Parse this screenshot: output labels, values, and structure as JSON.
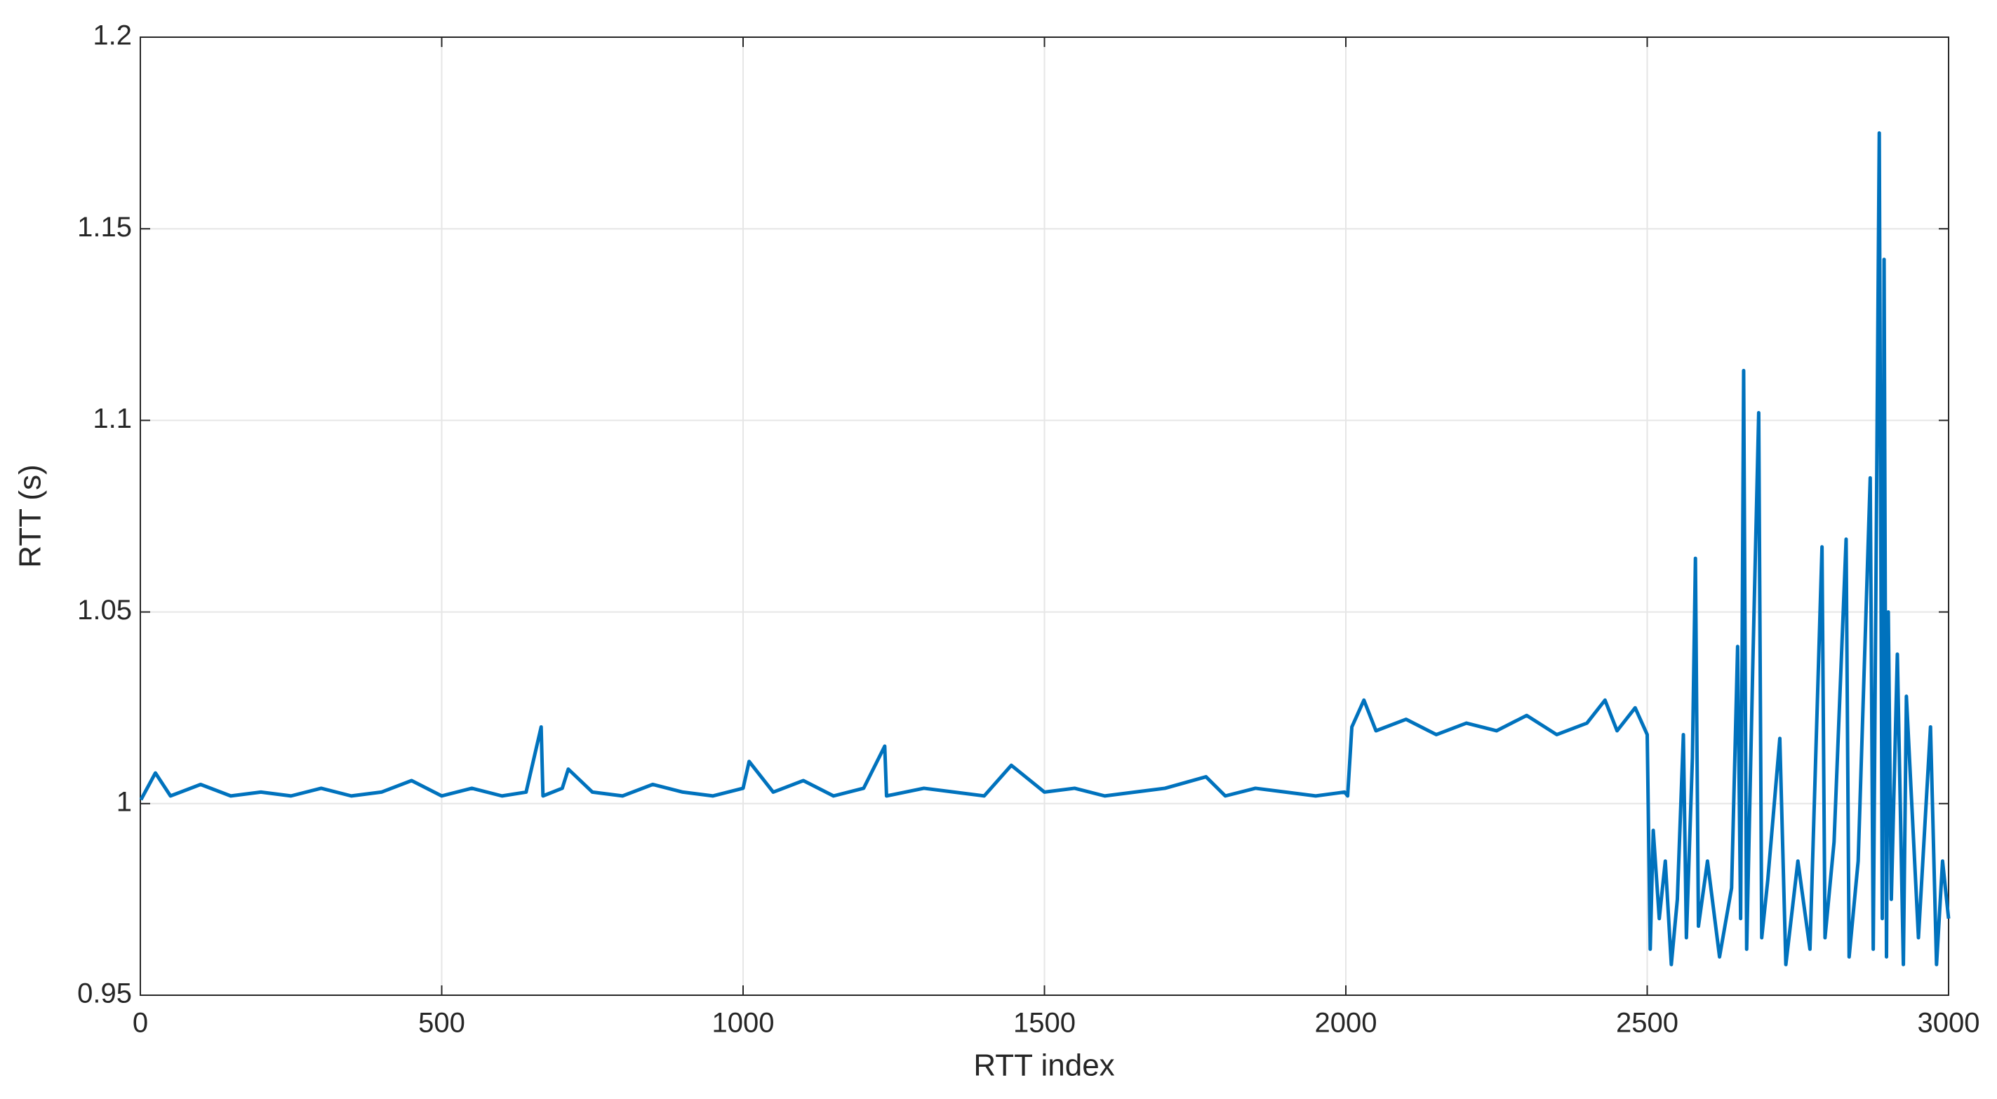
{
  "chart_data": {
    "type": "line",
    "xlabel": "RTT index",
    "ylabel": "RTT (s)",
    "x": [
      1,
      25,
      50,
      100,
      150,
      200,
      250,
      300,
      350,
      400,
      450,
      500,
      550,
      600,
      640,
      665,
      668,
      700,
      710,
      750,
      800,
      850,
      900,
      950,
      1000,
      1010,
      1050,
      1100,
      1150,
      1200,
      1235,
      1238,
      1300,
      1350,
      1400,
      1445,
      1500,
      1550,
      1600,
      1650,
      1700,
      1768,
      1800,
      1850,
      1900,
      1950,
      1998,
      2003,
      2010,
      2030,
      2050,
      2100,
      2150,
      2200,
      2250,
      2300,
      2350,
      2400,
      2430,
      2450,
      2480,
      2500,
      2505,
      2510,
      2520,
      2530,
      2540,
      2550,
      2560,
      2565,
      2575,
      2580,
      2585,
      2600,
      2620,
      2640,
      2650,
      2655,
      2660,
      2665,
      2675,
      2685,
      2690,
      2700,
      2720,
      2730,
      2750,
      2770,
      2790,
      2795,
      2810,
      2830,
      2835,
      2850,
      2870,
      2875,
      2885,
      2890,
      2893,
      2897,
      2900,
      2905,
      2915,
      2925,
      2930,
      2950,
      2970,
      2980,
      2990,
      3000
    ],
    "series": [
      {
        "name": "RTT",
        "color": "#0072bd",
        "values": [
          1.001,
          1.008,
          1.002,
          1.005,
          1.002,
          1.003,
          1.002,
          1.004,
          1.002,
          1.003,
          1.006,
          1.002,
          1.004,
          1.002,
          1.003,
          1.02,
          1.002,
          1.004,
          1.009,
          1.003,
          1.002,
          1.005,
          1.003,
          1.002,
          1.004,
          1.011,
          1.003,
          1.006,
          1.002,
          1.004,
          1.015,
          1.002,
          1.004,
          1.003,
          1.002,
          1.01,
          1.003,
          1.004,
          1.002,
          1.003,
          1.004,
          1.007,
          1.002,
          1.004,
          1.003,
          1.002,
          1.003,
          1.002,
          1.02,
          1.027,
          1.019,
          1.022,
          1.018,
          1.021,
          1.019,
          1.023,
          1.018,
          1.021,
          1.027,
          1.019,
          1.025,
          1.018,
          0.962,
          0.993,
          0.97,
          0.985,
          0.958,
          0.975,
          1.018,
          0.965,
          1.012,
          1.064,
          0.968,
          0.985,
          0.96,
          0.978,
          1.041,
          0.97,
          1.113,
          0.962,
          1.035,
          1.102,
          0.965,
          0.98,
          1.017,
          0.958,
          0.985,
          0.962,
          1.067,
          0.965,
          0.99,
          1.069,
          0.96,
          0.985,
          1.085,
          0.962,
          1.175,
          0.97,
          1.142,
          0.96,
          1.05,
          0.975,
          1.039,
          0.958,
          1.028,
          0.965,
          1.02,
          0.958,
          0.985,
          0.97
        ]
      }
    ],
    "xlim": [
      0,
      3000
    ],
    "xticks": [
      0,
      500,
      1000,
      1500,
      2000,
      2500,
      3000
    ],
    "ylim": [
      0.95,
      1.2
    ],
    "yticks": [
      0.95,
      1,
      1.05,
      1.1,
      1.15,
      1.2
    ],
    "grid": true
  }
}
